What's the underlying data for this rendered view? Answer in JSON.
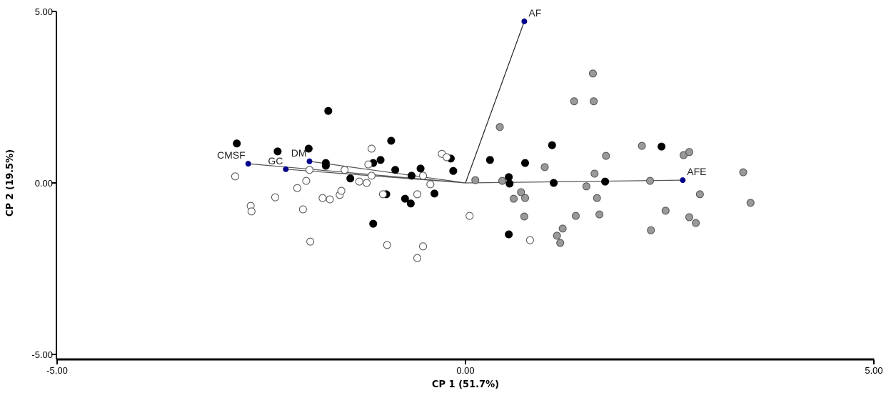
{
  "chart_data": {
    "type": "scatter",
    "subtype": "pca-biplot",
    "title": "",
    "xlabel": "CP 1 (51.7%)",
    "ylabel": "CP 2 (19.5%)",
    "xlim": [
      -5,
      5
    ],
    "ylim": [
      -5,
      5
    ],
    "x_ticks": [
      "-5.00",
      "0.00",
      "5.00"
    ],
    "y_ticks": [
      "5.00",
      "0.00",
      "-5.00"
    ],
    "grid": false,
    "colors": {
      "black": "#000000",
      "white": "#ffffff",
      "gray": "#999999",
      "vector": "#00008b"
    },
    "vectors": [
      {
        "label": "AF",
        "x": 0.72,
        "y": 4.71
      },
      {
        "label": "AFE",
        "x": 2.66,
        "y": 0.08
      },
      {
        "label": "CMSF",
        "x": -2.66,
        "y": 0.56
      },
      {
        "label": "GC",
        "x": -2.2,
        "y": 0.4
      },
      {
        "label": "DM",
        "x": -1.91,
        "y": 0.63
      }
    ],
    "series": [
      {
        "name": "black",
        "points": [
          [
            -2.8,
            1.15
          ],
          [
            -2.3,
            0.92
          ],
          [
            -1.92,
            1.0
          ],
          [
            -1.68,
            2.1
          ],
          [
            -1.71,
            0.58
          ],
          [
            -1.71,
            0.5
          ],
          [
            -1.41,
            0.13
          ],
          [
            -1.13,
            -1.19
          ],
          [
            -1.13,
            0.58
          ],
          [
            -1.04,
            0.67
          ],
          [
            -0.91,
            1.23
          ],
          [
            -0.86,
            0.38
          ],
          [
            -0.97,
            -0.33
          ],
          [
            -0.74,
            -0.46
          ],
          [
            -0.67,
            -0.6
          ],
          [
            -0.66,
            0.21
          ],
          [
            -0.55,
            0.42
          ],
          [
            -0.38,
            -0.31
          ],
          [
            -0.18,
            0.71
          ],
          [
            -0.15,
            0.35
          ],
          [
            0.3,
            0.67
          ],
          [
            0.53,
            0.17
          ],
          [
            0.54,
            -0.02
          ],
          [
            0.53,
            -1.5
          ],
          [
            0.73,
            0.58
          ],
          [
            1.06,
            1.1
          ],
          [
            1.08,
            0.0
          ],
          [
            1.71,
            0.04
          ],
          [
            2.4,
            1.06
          ]
        ]
      },
      {
        "name": "white",
        "points": [
          [
            -2.82,
            0.19
          ],
          [
            -2.63,
            -0.67
          ],
          [
            -2.62,
            -0.83
          ],
          [
            -2.33,
            -0.42
          ],
          [
            -2.06,
            -0.15
          ],
          [
            -1.99,
            -0.77
          ],
          [
            -1.95,
            0.06
          ],
          [
            -1.91,
            0.38
          ],
          [
            -1.9,
            -1.71
          ],
          [
            -1.75,
            -0.44
          ],
          [
            -1.66,
            -0.48
          ],
          [
            -1.54,
            -0.35
          ],
          [
            -1.52,
            -0.23
          ],
          [
            -1.48,
            0.38
          ],
          [
            -1.3,
            0.04
          ],
          [
            -1.21,
            0.0
          ],
          [
            -1.19,
            0.54
          ],
          [
            -1.15,
            1.0
          ],
          [
            -1.15,
            0.21
          ],
          [
            -1.01,
            -0.33
          ],
          [
            -0.96,
            -1.81
          ],
          [
            -0.59,
            -0.33
          ],
          [
            -0.59,
            -2.19
          ],
          [
            -0.52,
            -1.85
          ],
          [
            -0.52,
            0.21
          ],
          [
            -0.43,
            -0.04
          ],
          [
            -0.29,
            0.85
          ],
          [
            -0.23,
            0.75
          ],
          [
            0.05,
            -0.96
          ],
          [
            0.79,
            -1.67
          ]
        ]
      },
      {
        "name": "gray",
        "points": [
          [
            1.56,
            3.19
          ],
          [
            1.33,
            2.38
          ],
          [
            1.57,
            2.38
          ],
          [
            0.42,
            1.63
          ],
          [
            2.16,
            1.08
          ],
          [
            2.67,
            0.81
          ],
          [
            2.74,
            0.9
          ],
          [
            1.72,
            0.79
          ],
          [
            0.97,
            0.46
          ],
          [
            1.58,
            0.27
          ],
          [
            3.4,
            0.31
          ],
          [
            0.12,
            0.08
          ],
          [
            0.45,
            0.06
          ],
          [
            2.26,
            0.06
          ],
          [
            1.48,
            -0.1
          ],
          [
            0.68,
            -0.27
          ],
          [
            0.59,
            -0.46
          ],
          [
            0.73,
            -0.44
          ],
          [
            1.61,
            -0.44
          ],
          [
            2.87,
            -0.33
          ],
          [
            3.49,
            -0.58
          ],
          [
            0.72,
            -0.98
          ],
          [
            1.35,
            -0.96
          ],
          [
            1.64,
            -0.92
          ],
          [
            2.45,
            -0.81
          ],
          [
            2.74,
            -1.0
          ],
          [
            2.82,
            -1.17
          ],
          [
            1.19,
            -1.33
          ],
          [
            1.12,
            -1.54
          ],
          [
            1.16,
            -1.75
          ],
          [
            2.27,
            -1.38
          ]
        ]
      }
    ]
  }
}
